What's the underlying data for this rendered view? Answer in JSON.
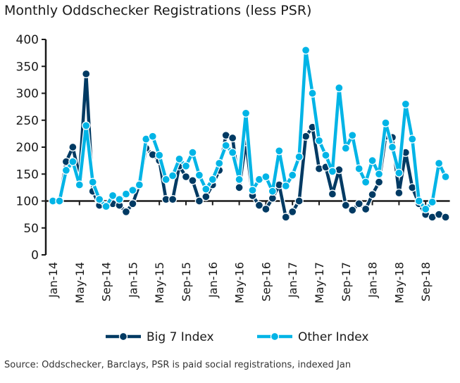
{
  "chart_data": {
    "type": "line",
    "title": "Monthly Oddschecker Registrations (less PSR)",
    "xlabel": "",
    "ylabel": "",
    "ylim": [
      0,
      400
    ],
    "yticks": [
      0,
      50,
      100,
      150,
      200,
      250,
      300,
      350,
      400
    ],
    "baseline": 100,
    "x_tick_labels": [
      "Jan-14",
      "May-14",
      "Sep-14",
      "Jan-15",
      "May-15",
      "Sep-15",
      "Jan-16",
      "May-16",
      "Sep-16",
      "Jan-17",
      "May-17",
      "Sep-17",
      "Jan-18",
      "May-18",
      "Sep-18"
    ],
    "x_start": "Jan-14",
    "x_end": "Dec-18",
    "grid": false,
    "legend_position": "bottom",
    "series": [
      {
        "name": "Big 7 Index",
        "color": "#003a63",
        "values": [
          100,
          100,
          173,
          200,
          145,
          336,
          118,
          92,
          92,
          95,
          92,
          80,
          95,
          130,
          198,
          186,
          175,
          103,
          103,
          165,
          145,
          138,
          100,
          108,
          130,
          157,
          222,
          217,
          125,
          210,
          110,
          92,
          85,
          105,
          130,
          70,
          80,
          100,
          220,
          237,
          160,
          163,
          113,
          158,
          92,
          83,
          95,
          85,
          112,
          135,
          220,
          218,
          115,
          190,
          125,
          95,
          75,
          70,
          75,
          70
        ]
      },
      {
        "name": "Other Index",
        "color": "#00b4e6",
        "values": [
          100,
          100,
          157,
          173,
          130,
          240,
          135,
          103,
          90,
          110,
          103,
          113,
          120,
          130,
          215,
          220,
          185,
          140,
          147,
          178,
          165,
          190,
          148,
          122,
          140,
          170,
          203,
          190,
          140,
          263,
          120,
          140,
          145,
          118,
          193,
          128,
          148,
          182,
          380,
          300,
          212,
          185,
          155,
          310,
          198,
          222,
          160,
          135,
          175,
          150,
          245,
          200,
          152,
          280,
          215,
          100,
          85,
          98,
          170,
          145
        ]
      }
    ]
  },
  "source": "Source: Oddschecker, Barclays, PSR is paid social registrations, indexed Jan"
}
